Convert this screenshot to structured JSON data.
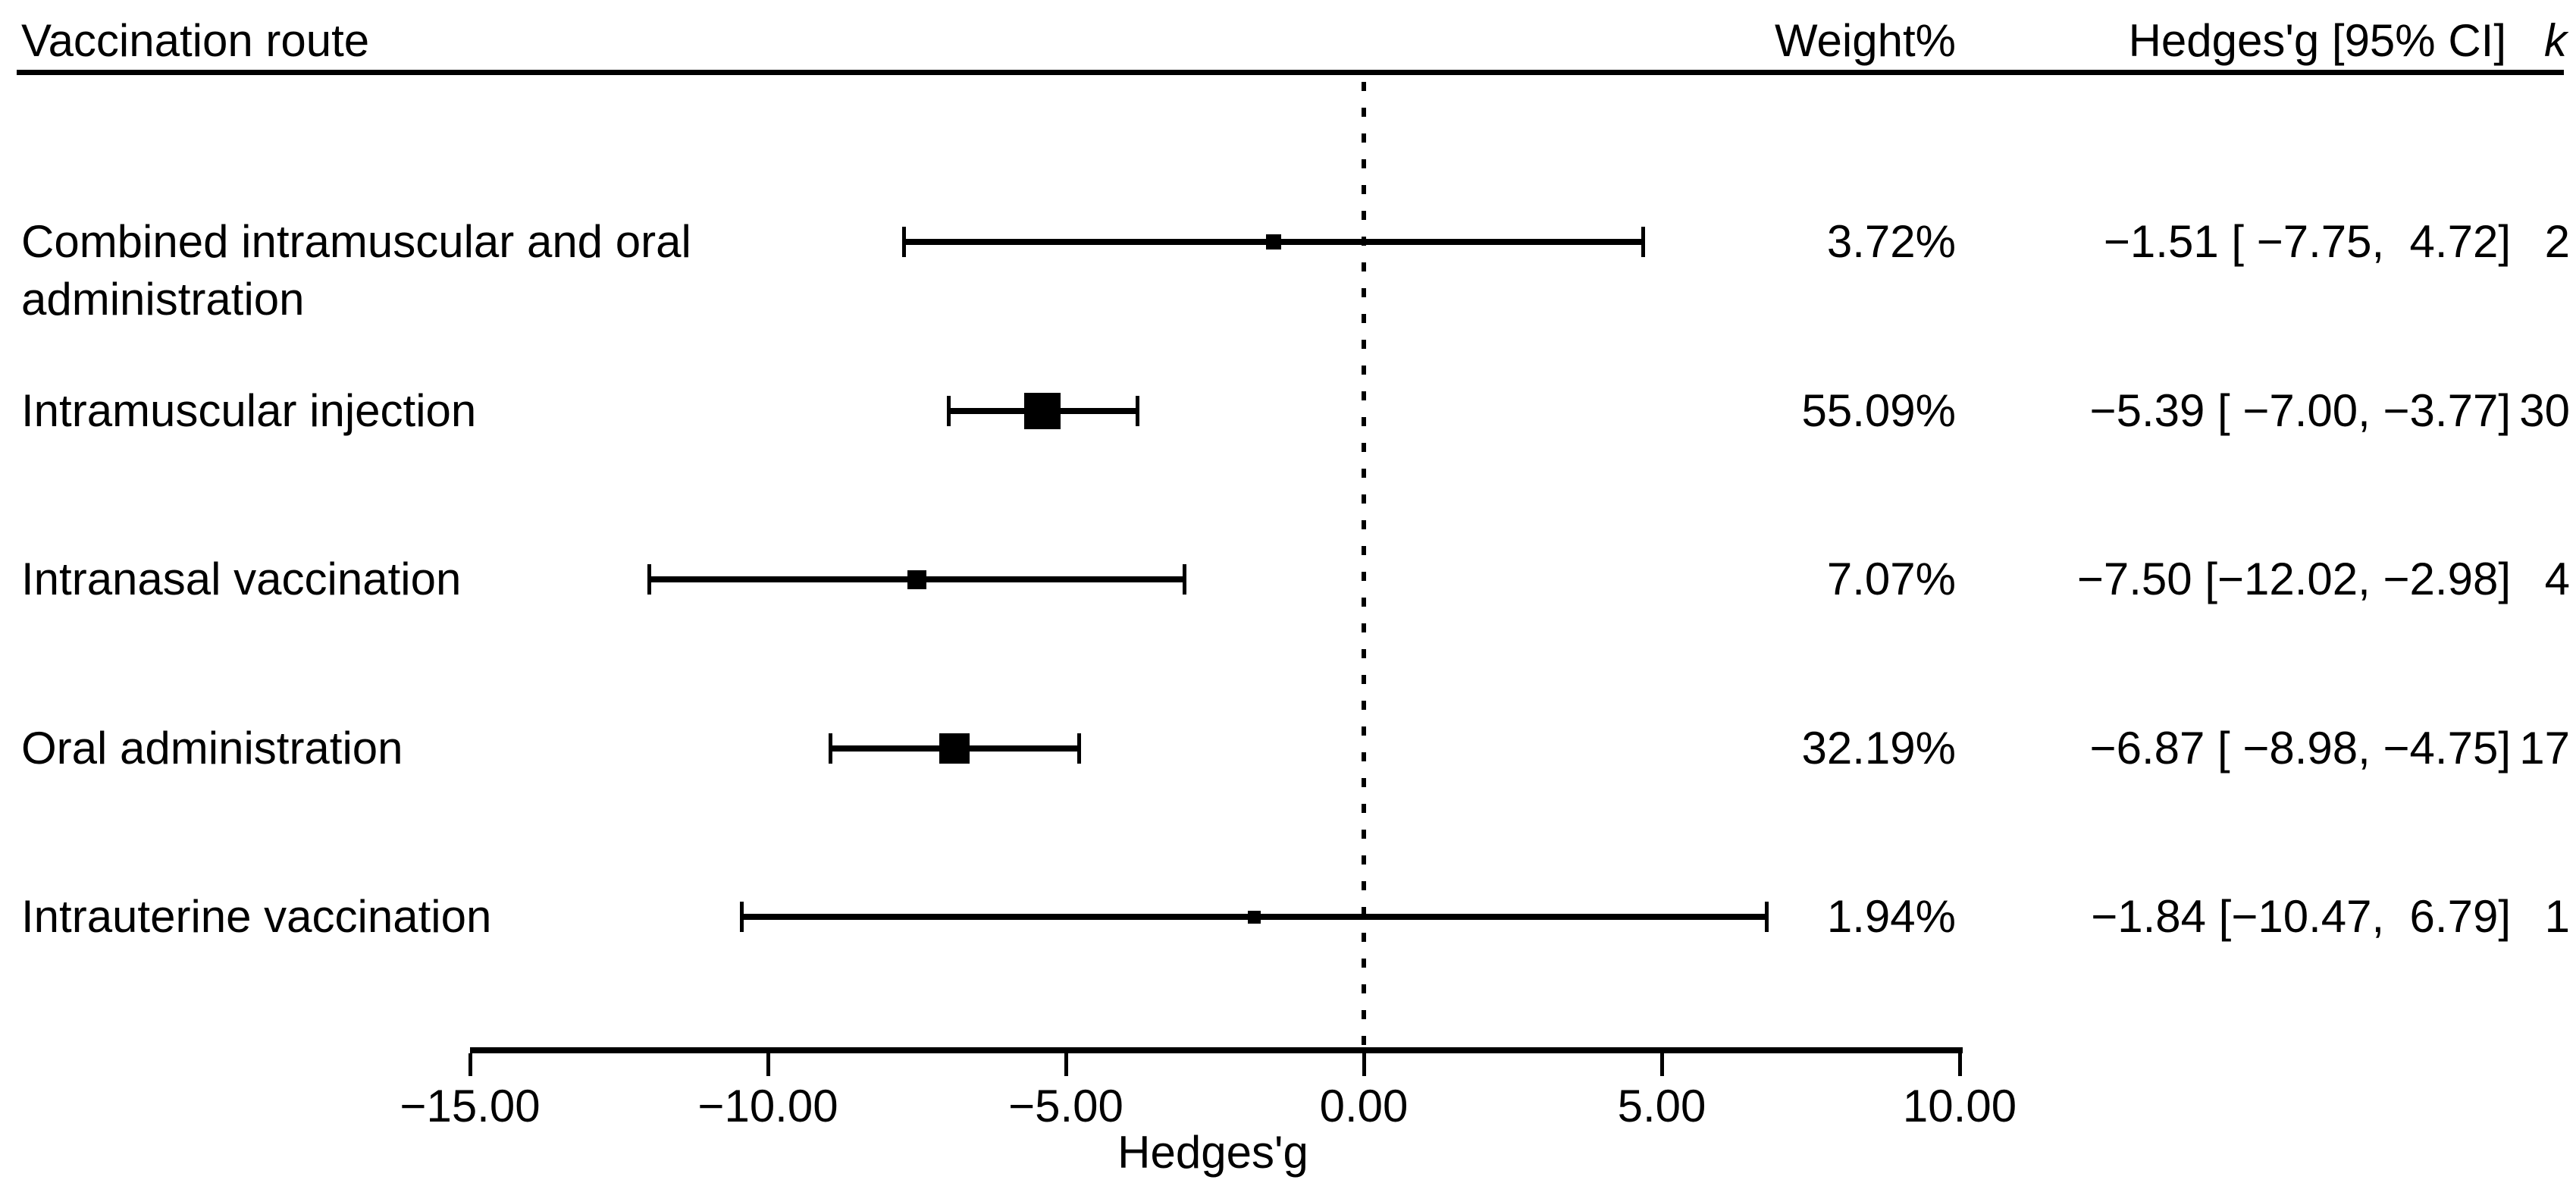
{
  "header": {
    "col_route": "Vaccination route",
    "col_weight": "Weight%",
    "col_ci": "Hedges'g [95% CI]",
    "col_k": "k"
  },
  "colors": {
    "foreground": "#000000",
    "background": "#ffffff"
  },
  "chart_data": {
    "type": "forest",
    "title": "",
    "xlabel": "Hedges'g",
    "xlim": [
      -15,
      10
    ],
    "x_tick_values": [
      -15,
      -10,
      -5,
      0,
      5,
      10
    ],
    "x_tick_labels": [
      "−15.00",
      "−10.00",
      "−5.00",
      "0.00",
      "5.00",
      "10.00"
    ],
    "zero_line_value": 0,
    "grid": false,
    "rows": [
      {
        "label": "Combined intramuscular and oral administration",
        "weight_label": "3.72%",
        "weight_pct": 3.72,
        "estimate": -1.51,
        "ci_low": -7.75,
        "ci_high": 4.72,
        "ci_label": "−1.51 [ −7.75,  4.72]",
        "k": "2",
        "marker_size_px": 20
      },
      {
        "label": "Intramuscular injection",
        "weight_label": "55.09%",
        "weight_pct": 55.09,
        "estimate": -5.39,
        "ci_low": -7.0,
        "ci_high": -3.77,
        "ci_label": "−5.39 [ −7.00, −3.77]",
        "k": "30",
        "marker_size_px": 48
      },
      {
        "label": "Intranasal vaccination",
        "weight_label": "7.07%",
        "weight_pct": 7.07,
        "estimate": -7.5,
        "ci_low": -12.02,
        "ci_high": -2.98,
        "ci_label": "−7.50 [−12.02, −2.98]",
        "k": "4",
        "marker_size_px": 25
      },
      {
        "label": "Oral administration",
        "weight_label": "32.19%",
        "weight_pct": 32.19,
        "estimate": -6.87,
        "ci_low": -8.98,
        "ci_high": -4.75,
        "ci_label": "−6.87 [ −8.98, −4.75]",
        "k": "17",
        "marker_size_px": 40
      },
      {
        "label": "Intrauterine vaccination",
        "weight_label": "1.94%",
        "weight_pct": 1.94,
        "estimate": -1.84,
        "ci_low": -10.47,
        "ci_high": 6.79,
        "ci_label": "−1.84 [−10.47,  6.79]",
        "k": "1",
        "marker_size_px": 17
      }
    ]
  }
}
